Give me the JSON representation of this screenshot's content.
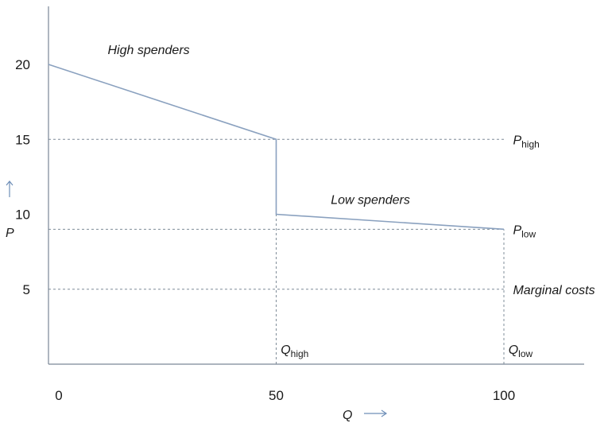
{
  "chart_data": {
    "type": "line",
    "xlabel": "Q",
    "ylabel": "P",
    "xlim": [
      0,
      118
    ],
    "ylim": [
      0,
      24
    ],
    "x_ticks": [
      {
        "value": 0,
        "label": "0"
      },
      {
        "value": 50,
        "label": "50"
      },
      {
        "value": 100,
        "label": "100"
      }
    ],
    "y_ticks": [
      {
        "value": 20,
        "label": "20"
      },
      {
        "value": 15,
        "label": "15"
      },
      {
        "value": 10,
        "label": "10"
      },
      {
        "value": 5,
        "label": "5"
      }
    ],
    "series": [
      {
        "color": "#8aa1bf",
        "points": [
          {
            "x": 0,
            "y": 20
          },
          {
            "x": 50,
            "y": 15
          },
          {
            "x": 50,
            "y": 10
          },
          {
            "x": 100,
            "y": 9
          }
        ]
      }
    ],
    "reference_lines": [
      {
        "orientation": "horizontal",
        "y": 15,
        "x_from": 0,
        "x_to": 100
      },
      {
        "orientation": "horizontal",
        "y": 9,
        "x_from": 0,
        "x_to": 100
      },
      {
        "orientation": "horizontal",
        "y": 5,
        "x_from": 0,
        "x_to": 100
      },
      {
        "orientation": "vertical",
        "x": 50,
        "y_from": 0,
        "y_to": 15
      },
      {
        "orientation": "vertical",
        "x": 100,
        "y_from": 0,
        "y_to": 9
      }
    ],
    "annotations": [
      {
        "text": "High spenders",
        "x": 13,
        "y": 21
      },
      {
        "text": "Low spenders",
        "x": 62,
        "y": 11
      },
      {
        "text": "Marginal costs",
        "x": 102,
        "y": 5
      },
      {
        "text": "P",
        "sub": "high",
        "x": 102,
        "y": 15
      },
      {
        "text": "P",
        "sub": "low",
        "x": 102,
        "y": 9
      },
      {
        "text": "Q",
        "sub": "high",
        "x": 51,
        "y": 1
      },
      {
        "text": "Q",
        "sub": "low",
        "x": 101,
        "y": 1
      }
    ],
    "grid": false
  }
}
